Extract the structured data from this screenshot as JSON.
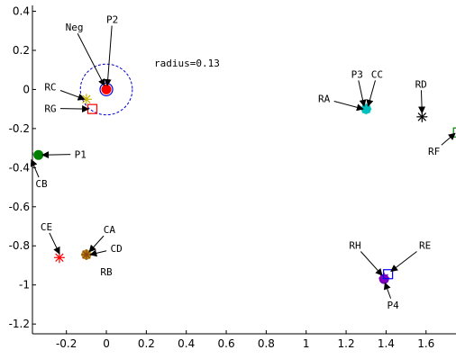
{
  "chart_data": {
    "type": "scatter",
    "xlim": [
      -0.37,
      1.75
    ],
    "ylim": [
      -1.25,
      0.43
    ],
    "xticks": [
      -0.2,
      0,
      0.2,
      0.4,
      0.6,
      0.8,
      1,
      1.2,
      1.4,
      1.6
    ],
    "xtick_labels": [
      "-0.2",
      "0",
      "0.2",
      "0.4",
      "0.6",
      "0.8",
      "1",
      "1.2",
      "1.4",
      "1.6"
    ],
    "yticks": [
      0.4,
      0.2,
      0,
      -0.2,
      -0.4,
      -0.6,
      -0.8,
      -1,
      -1.2
    ],
    "ytick_labels": [
      "0.4",
      "0.2",
      "0",
      "-0.2",
      "-0.4",
      "-0.6",
      "-0.8",
      "-1",
      "-1.2"
    ],
    "grid": false,
    "radius_circle": {
      "cx": 0,
      "cy": 0,
      "r": 0.13,
      "color": "#0000cc"
    },
    "radius_text": "radius=0.13",
    "points": [
      {
        "id": "P2",
        "x": 0,
        "y": 0,
        "marker": "filled-circle",
        "color": "#ff0000",
        "edge": "#0000cc"
      },
      {
        "id": "RC",
        "x": -0.1,
        "y": -0.05,
        "marker": "star",
        "color": "#c8b400"
      },
      {
        "id": "RG",
        "x": -0.07,
        "y": -0.1,
        "marker": "square",
        "color": "#ff0000"
      },
      {
        "id": "CB",
        "x": -0.39,
        "y": -0.33,
        "marker": "filled-circle",
        "color": "#333333"
      },
      {
        "id": "P1",
        "x": -0.34,
        "y": -0.335,
        "marker": "filled-circle",
        "color": "#008000"
      },
      {
        "id": "P3",
        "x": 1.3,
        "y": -0.1,
        "marker": "filled-circle",
        "color": "#00bfbf"
      },
      {
        "id": "CC",
        "x": 1.3,
        "y": -0.1,
        "marker": "star",
        "color": "#00bfbf"
      },
      {
        "id": "RD",
        "x": 1.58,
        "y": -0.14,
        "marker": "star",
        "color": "#000000"
      },
      {
        "id": "RF",
        "x": 1.76,
        "y": -0.22,
        "marker": "square",
        "color": "#008000"
      },
      {
        "id": "CE",
        "x": -0.235,
        "y": -0.86,
        "marker": "star",
        "color": "#ff0000"
      },
      {
        "id": "CA",
        "x": -0.1,
        "y": -0.845,
        "marker": "filled-circle",
        "color": "#b8860b"
      },
      {
        "id": "CD",
        "x": -0.1,
        "y": -0.845,
        "marker": "star",
        "color": "#8b4513"
      },
      {
        "id": "P4",
        "x": 1.39,
        "y": -0.97,
        "marker": "filled-circle",
        "color": "#8000c0"
      },
      {
        "id": "RH",
        "x": 1.39,
        "y": -0.965,
        "marker": "star",
        "color": "#8000c0"
      },
      {
        "id": "RE",
        "x": 1.41,
        "y": -0.945,
        "marker": "square",
        "color": "#0000ff"
      }
    ],
    "annotations": [
      {
        "label": "P2",
        "x": 0.03,
        "y": 0.34,
        "arrow": true,
        "tx": 0.005,
        "ty": 0.02
      },
      {
        "label": "Neg",
        "x": -0.16,
        "y": 0.3,
        "arrow": true,
        "tx": -0.01,
        "ty": 0.02
      },
      {
        "label": "RC",
        "x": -0.28,
        "y": -0.005,
        "arrow": true,
        "tx": -0.11,
        "ty": -0.05
      },
      {
        "label": "RG",
        "x": -0.28,
        "y": -0.115,
        "arrow": true,
        "tx": -0.09,
        "ty": -0.1
      },
      {
        "label": "P1",
        "x": -0.13,
        "y": -0.35,
        "arrow": true,
        "tx": -0.32,
        "ty": -0.335
      },
      {
        "label": "CB",
        "x": -0.325,
        "y": -0.5,
        "arrow": true,
        "tx": -0.375,
        "ty": -0.36
      },
      {
        "label": "P3",
        "x": 1.255,
        "y": 0.06,
        "arrow": true,
        "tx": 1.29,
        "ty": -0.085
      },
      {
        "label": "CC",
        "x": 1.355,
        "y": 0.06,
        "arrow": true,
        "tx": 1.31,
        "ty": -0.085
      },
      {
        "label": "RA",
        "x": 1.09,
        "y": -0.065,
        "arrow": true,
        "tx": 1.285,
        "ty": -0.1
      },
      {
        "label": "RD",
        "x": 1.575,
        "y": 0.01,
        "arrow": true,
        "tx": 1.58,
        "ty": -0.12
      },
      {
        "label": "RF",
        "x": 1.64,
        "y": -0.335,
        "arrow": true,
        "tx": 1.745,
        "ty": -0.225
      },
      {
        "label": "CE",
        "x": -0.3,
        "y": -0.72,
        "arrow": true,
        "tx": -0.235,
        "ty": -0.84
      },
      {
        "label": "CA",
        "x": 0.015,
        "y": -0.735,
        "arrow": true,
        "tx": -0.085,
        "ty": -0.83
      },
      {
        "label": "CD",
        "x": 0.05,
        "y": -0.832,
        "arrow": true,
        "tx": -0.08,
        "ty": -0.845
      },
      {
        "label": "RB",
        "x": 0.0,
        "y": -0.95,
        "arrow": false
      },
      {
        "label": "RH",
        "x": 1.245,
        "y": -0.815,
        "arrow": true,
        "tx": 1.38,
        "ty": -0.95
      },
      {
        "label": "RE",
        "x": 1.595,
        "y": -0.815,
        "arrow": true,
        "tx": 1.425,
        "ty": -0.93
      },
      {
        "label": "P4",
        "x": 1.435,
        "y": -1.12,
        "arrow": true,
        "tx": 1.395,
        "ty": -0.99
      }
    ]
  }
}
